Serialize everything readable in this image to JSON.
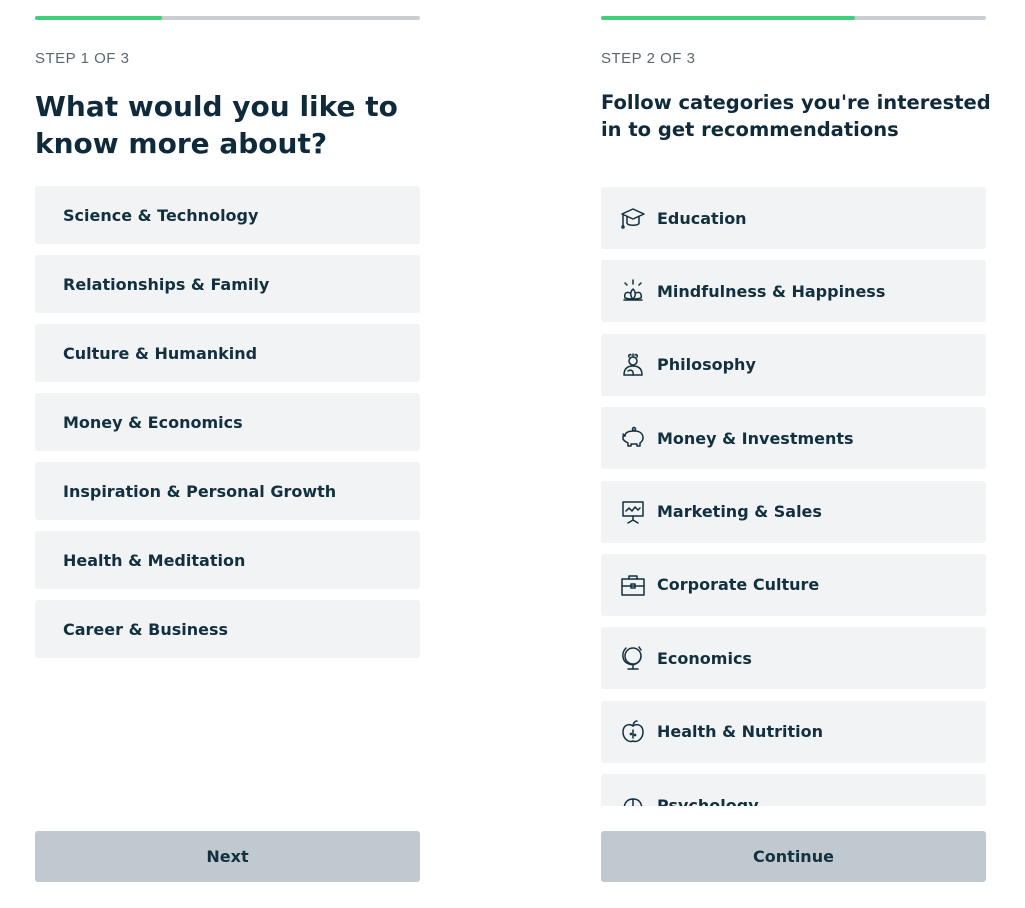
{
  "colors": {
    "progress_fill": "#3fd07a",
    "progress_track": "#c9ced2",
    "item_bg": "#f1f3f4",
    "button_bg": "#bfc9cf",
    "text": "#12303f"
  },
  "step1": {
    "progress_percent": 33,
    "step_label": "STEP 1 OF 3",
    "title": "What would you like to know more about?",
    "items": [
      {
        "label": "Science & Technology"
      },
      {
        "label": "Relationships & Family"
      },
      {
        "label": "Culture & Humankind"
      },
      {
        "label": "Money & Economics"
      },
      {
        "label": "Inspiration & Personal Growth"
      },
      {
        "label": "Health & Meditation"
      },
      {
        "label": "Career & Business"
      }
    ],
    "button_label": "Next"
  },
  "step2": {
    "progress_percent": 66,
    "step_label": "STEP 2 OF 3",
    "title": "Follow categories you're interested in to get recommendations",
    "items": [
      {
        "label": "Education",
        "icon": "graduation-cap-icon"
      },
      {
        "label": "Mindfulness & Happiness",
        "icon": "lotus-icon"
      },
      {
        "label": "Philosophy",
        "icon": "thinker-icon"
      },
      {
        "label": "Money & Investments",
        "icon": "piggy-bank-icon"
      },
      {
        "label": "Marketing & Sales",
        "icon": "presentation-board-icon"
      },
      {
        "label": "Corporate Culture",
        "icon": "briefcase-icon"
      },
      {
        "label": "Economics",
        "icon": "globe-icon"
      },
      {
        "label": "Health & Nutrition",
        "icon": "apple-icon"
      },
      {
        "label": "Psychology",
        "icon": "brain-icon"
      }
    ],
    "button_label": "Continue"
  }
}
